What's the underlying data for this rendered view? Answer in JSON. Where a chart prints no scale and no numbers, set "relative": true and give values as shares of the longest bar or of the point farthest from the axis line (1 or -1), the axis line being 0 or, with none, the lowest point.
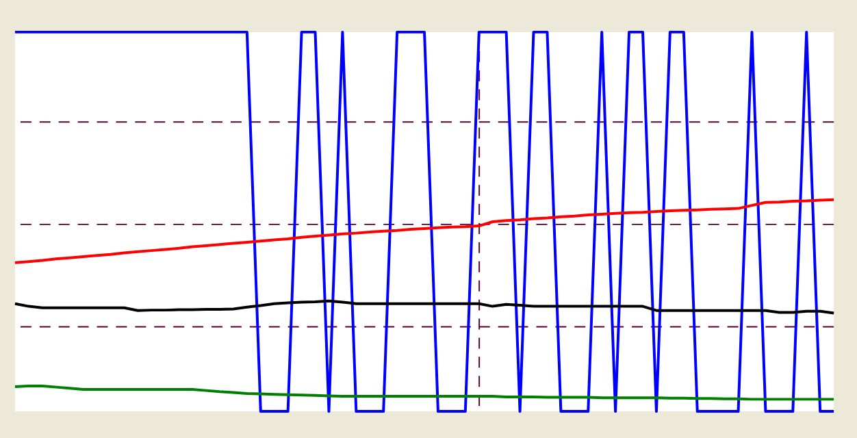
{
  "chart_data": {
    "type": "line",
    "relative": true,
    "tick_labels": false,
    "grid": false,
    "marker": "none",
    "line_style": "solid",
    "categories": [
      null,
      null,
      null,
      null,
      null,
      null,
      null,
      null,
      null,
      null,
      null,
      null,
      null,
      null,
      null,
      null,
      null,
      null,
      null,
      null,
      null,
      null,
      null,
      null,
      null,
      null,
      null,
      null,
      null,
      null,
      null,
      null,
      null,
      null,
      null,
      null,
      null,
      null,
      null,
      null,
      null,
      null,
      null,
      null,
      null,
      null,
      null,
      null,
      null,
      null,
      null,
      null,
      null,
      null,
      null,
      null,
      null,
      null,
      null,
      null,
      null
    ],
    "series": [
      {
        "color": "#0000ff",
        "values": [
          1,
          1,
          1,
          1,
          1,
          1,
          1,
          1,
          1,
          1,
          1,
          1,
          1,
          1,
          1,
          1,
          1,
          1,
          0,
          0,
          0,
          1,
          1,
          0,
          1,
          0,
          0,
          0,
          1,
          1,
          1,
          0,
          0,
          0,
          1,
          1,
          1,
          0,
          1,
          1,
          0,
          0,
          0,
          1,
          0,
          1,
          1,
          0,
          1,
          1,
          0,
          0,
          0,
          0,
          1,
          0,
          0,
          0,
          1,
          0,
          0
        ]
      },
      {
        "color": "#ff0000",
        "values": [
          0.392,
          0.395,
          0.398,
          0.402,
          0.405,
          0.408,
          0.411,
          0.414,
          0.418,
          0.421,
          0.424,
          0.427,
          0.43,
          0.434,
          0.437,
          0.44,
          0.443,
          0.446,
          0.449,
          0.452,
          0.455,
          0.459,
          0.462,
          0.465,
          0.468,
          0.47,
          0.473,
          0.475,
          0.477,
          0.48,
          0.482,
          0.484,
          0.486,
          0.487,
          0.489,
          0.5,
          0.503,
          0.505,
          0.508,
          0.51,
          0.513,
          0.515,
          0.518,
          0.52,
          0.522,
          0.524,
          0.525,
          0.527,
          0.529,
          0.53,
          0.531,
          0.533,
          0.534,
          0.535,
          0.543,
          0.551,
          0.552,
          0.554,
          0.555,
          0.557,
          0.558
        ]
      },
      {
        "color": "#000000",
        "values": [
          0.284,
          0.277,
          0.273,
          0.273,
          0.273,
          0.273,
          0.273,
          0.273,
          0.273,
          0.266,
          0.267,
          0.267,
          0.268,
          0.268,
          0.269,
          0.269,
          0.27,
          0.275,
          0.279,
          0.284,
          0.286,
          0.288,
          0.289,
          0.291,
          0.288,
          0.284,
          0.284,
          0.284,
          0.284,
          0.284,
          0.284,
          0.284,
          0.284,
          0.284,
          0.284,
          0.277,
          0.282,
          0.28,
          0.277,
          0.277,
          0.277,
          0.277,
          0.277,
          0.277,
          0.277,
          0.277,
          0.277,
          0.266,
          0.266,
          0.266,
          0.266,
          0.266,
          0.266,
          0.266,
          0.266,
          0.266,
          0.261,
          0.261,
          0.264,
          0.264,
          0.259
        ]
      },
      {
        "color": "#008000",
        "values": [
          0.065,
          0.067,
          0.067,
          0.064,
          0.061,
          0.058,
          0.058,
          0.058,
          0.058,
          0.058,
          0.058,
          0.058,
          0.058,
          0.058,
          0.055,
          0.052,
          0.05,
          0.047,
          0.046,
          0.045,
          0.044,
          0.043,
          0.042,
          0.041,
          0.04,
          0.04,
          0.04,
          0.04,
          0.04,
          0.04,
          0.04,
          0.04,
          0.04,
          0.04,
          0.04,
          0.04,
          0.038,
          0.038,
          0.038,
          0.037,
          0.037,
          0.037,
          0.037,
          0.036,
          0.036,
          0.036,
          0.036,
          0.036,
          0.035,
          0.035,
          0.034,
          0.034,
          0.033,
          0.033,
          0.032,
          0.032,
          0.032,
          0.032,
          0.032,
          0.032,
          0.032
        ]
      }
    ],
    "ref_lines": [
      {
        "axis": "y",
        "value": 0.763,
        "color": "#600030",
        "line_style": "dashed"
      },
      {
        "axis": "y",
        "value": 0.493,
        "color": "#600030",
        "line_style": "dashed"
      },
      {
        "axis": "y",
        "value": 0.223,
        "color": "#600030",
        "line_style": "dashed"
      }
    ]
  }
}
